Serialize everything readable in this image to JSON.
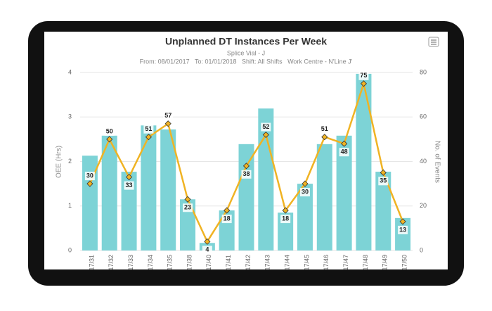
{
  "chart_data": {
    "type": "bar-line",
    "title": "Unplanned DT Instances Per Week",
    "subtitle": "Splice Vial - J",
    "filter": "From: 08/01/2017   To: 01/01/2018   Shift: All Shifts   Work Centre - N'Line J'",
    "y_label": "OEE (Hrs)",
    "y2_label": "No. of Events",
    "categories": [
      "17/31",
      "17/32",
      "17/33",
      "17/34",
      "17/35",
      "17/38",
      "17/40",
      "17/41",
      "17/42",
      "17/43",
      "17/44",
      "17/45",
      "17/46",
      "17/47",
      "17/48",
      "17/49",
      "17/50"
    ],
    "series": [
      {
        "type": "bar",
        "color": "#7dd3d6",
        "values": [
          2.13,
          2.58,
          1.77,
          2.81,
          2.72,
          1.15,
          0.17,
          0.9,
          2.39,
          3.19,
          0.85,
          1.5,
          2.39,
          2.58,
          3.97,
          1.77,
          0.73
        ]
      },
      {
        "type": "line",
        "axis": "y2",
        "color": "#f0b323",
        "values": [
          30,
          50,
          33,
          51,
          57,
          23,
          4,
          18,
          38,
          52,
          18,
          30,
          51,
          48,
          75,
          35,
          13
        ]
      }
    ],
    "ylim": [
      0,
      4
    ],
    "yticks": [
      0,
      1,
      2,
      3,
      4
    ],
    "y2lim": [
      0,
      80
    ],
    "y2ticks": [
      0,
      20,
      40,
      60,
      80
    ]
  }
}
